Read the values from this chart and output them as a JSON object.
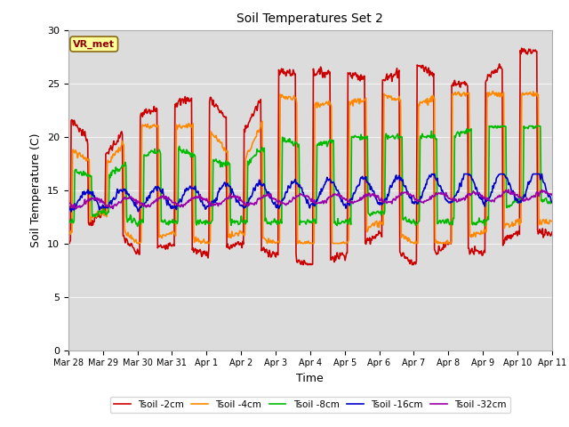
{
  "title": "Soil Temperatures Set 2",
  "xlabel": "Time",
  "ylabel": "Soil Temperature (C)",
  "ylim": [
    0,
    30
  ],
  "yticks": [
    0,
    5,
    10,
    15,
    20,
    25,
    30
  ],
  "annotation_text": "VR_met",
  "bg_color": "#dcdcdc",
  "fig_color": "#ffffff",
  "series_names": [
    "Tsoil -2cm",
    "Tsoil -4cm",
    "Tsoil -8cm",
    "Tsoil -16cm",
    "Tsoil -32cm"
  ],
  "series_colors": [
    "#cc0000",
    "#ff8800",
    "#00bb00",
    "#0000cc",
    "#9900aa"
  ],
  "series_lw": [
    1.2,
    1.2,
    1.2,
    1.2,
    1.2
  ],
  "tick_dates": [
    "Mar 28",
    "Mar 29",
    "Mar 30",
    "Mar 31",
    "Apr 1",
    "Apr 2",
    "Apr 3",
    "Apr 4",
    "Apr 5",
    "Apr 6",
    "Apr 7",
    "Apr 8",
    "Apr 9",
    "Apr 10",
    "Apr 11"
  ],
  "figsize": [
    6.4,
    4.8
  ],
  "dpi": 100
}
